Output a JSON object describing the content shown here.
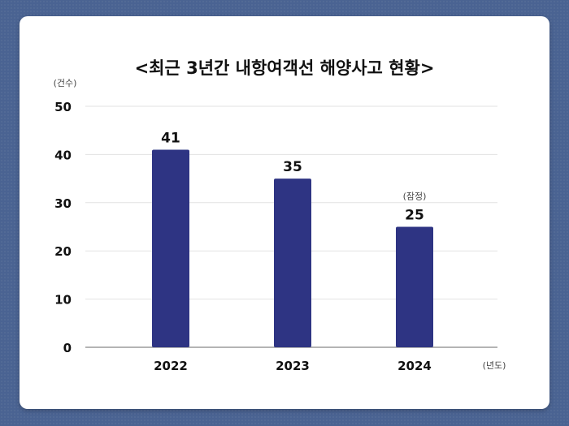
{
  "chart_data": {
    "type": "bar",
    "title": "<최근 3년간 내항여객선 해양사고 현황>",
    "y_unit": "(건수)",
    "x_unit": "(년도)",
    "categories": [
      "2022",
      "2023",
      "2024"
    ],
    "values": [
      41,
      35,
      25
    ],
    "value_labels": [
      "41",
      "35",
      "25"
    ],
    "value_notes": [
      "",
      "",
      "(잠정)"
    ],
    "ylim": [
      0,
      50
    ],
    "yticks": [
      0,
      10,
      20,
      30,
      40,
      50
    ],
    "grid": true,
    "bar_color": "#2e3483"
  }
}
